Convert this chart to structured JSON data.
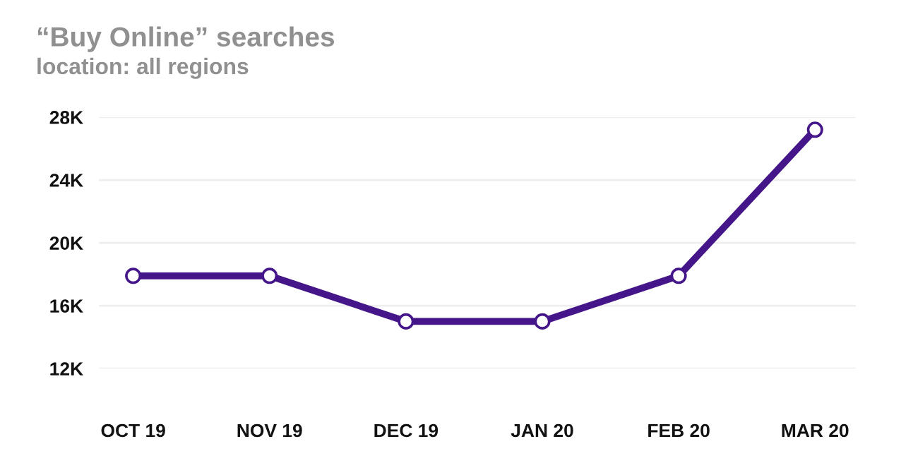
{
  "chart_data": {
    "type": "line",
    "title": "“Buy Online” searches",
    "subtitle": "location: all regions",
    "categories": [
      "OCT 19",
      "NOV 19",
      "DEC 19",
      "JAN 20",
      "FEB 20",
      "MAR 20"
    ],
    "series": [
      {
        "color": "#45168a",
        "values": [
          17.9,
          17.9,
          15.0,
          15.0,
          17.9,
          27.2
        ]
      }
    ],
    "ylim": [
      12,
      28
    ],
    "yticks": [
      {
        "value": 12,
        "label": "12K"
      },
      {
        "value": 16,
        "label": "16K"
      },
      {
        "value": 20,
        "label": "20K"
      },
      {
        "value": 24,
        "label": "24K"
      },
      {
        "value": 28,
        "label": "28K"
      }
    ],
    "grid": "y",
    "marker": "circle",
    "line_style": "solid",
    "legend": false
  }
}
